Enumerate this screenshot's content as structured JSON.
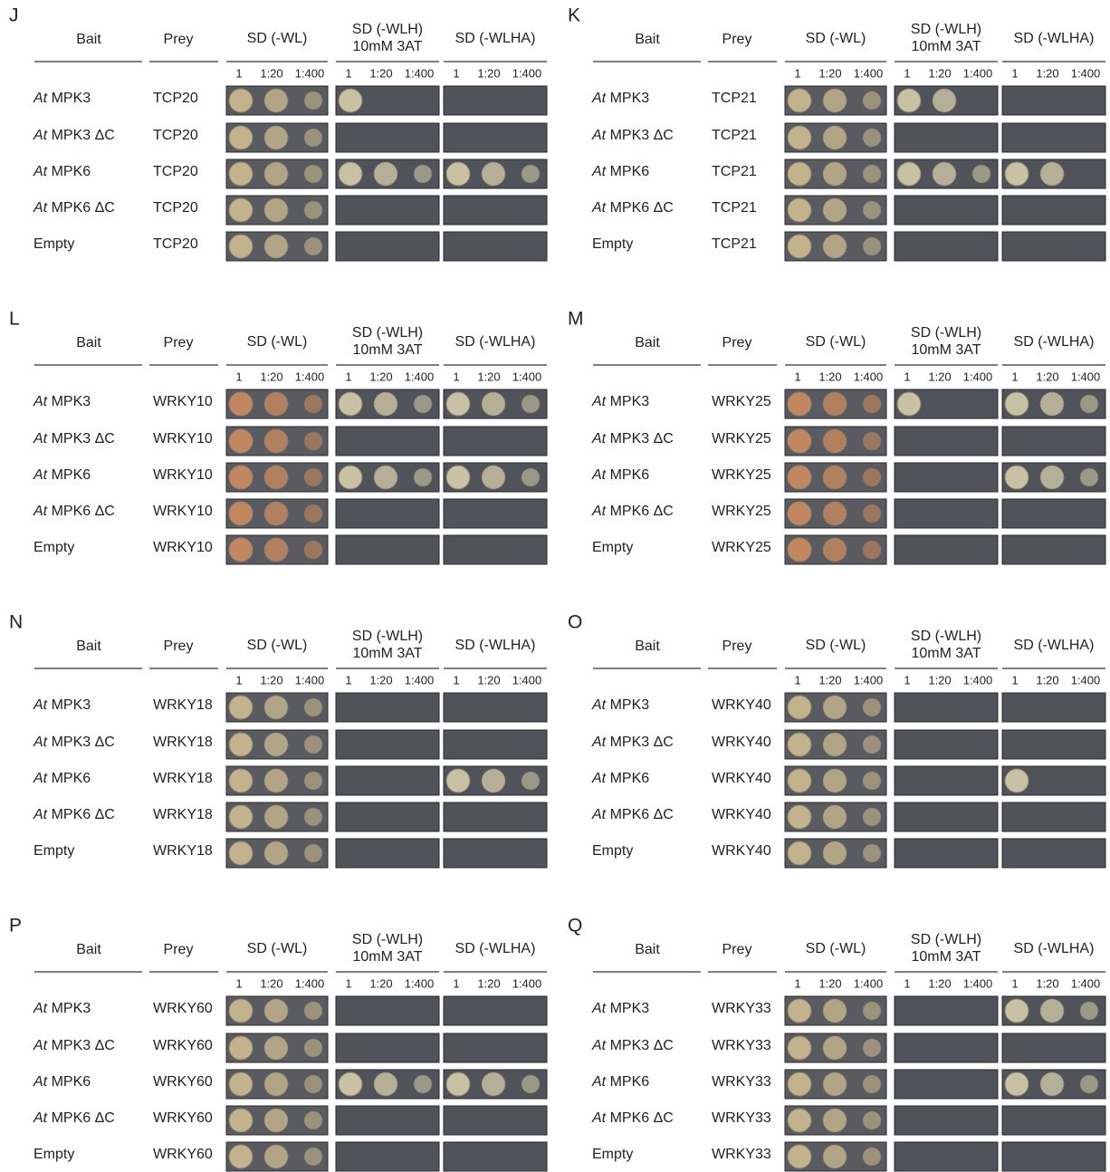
{
  "columns": {
    "bait": "Bait",
    "prey": "Prey",
    "plates": [
      [
        "SD (-WL)"
      ],
      [
        "SD (-WLH)",
        "10mM 3AT"
      ],
      [
        "SD (-WLHA)"
      ]
    ],
    "dilutions": [
      "1",
      "1:20",
      "1:400"
    ]
  },
  "baits": [
    {
      "species": "At",
      "gene": "MPK3"
    },
    {
      "species": "At",
      "gene": "MPK3 ΔC"
    },
    {
      "species": "At",
      "gene": "MPK6"
    },
    {
      "species": "At",
      "gene": "MPK6 ΔC"
    },
    {
      "gene": "Empty"
    }
  ],
  "panels": [
    {
      "label": "J",
      "prey": "TCP20"
    },
    {
      "label": "K",
      "prey": "TCP21"
    },
    {
      "label": "L",
      "prey": "WRKY10"
    },
    {
      "label": "M",
      "prey": "WRKY25"
    },
    {
      "label": "N",
      "prey": "WRKY18"
    },
    {
      "label": "O",
      "prey": "WRKY40"
    },
    {
      "label": "P",
      "prey": "WRKY60"
    },
    {
      "label": "Q",
      "prey": "WRKY33"
    }
  ]
}
